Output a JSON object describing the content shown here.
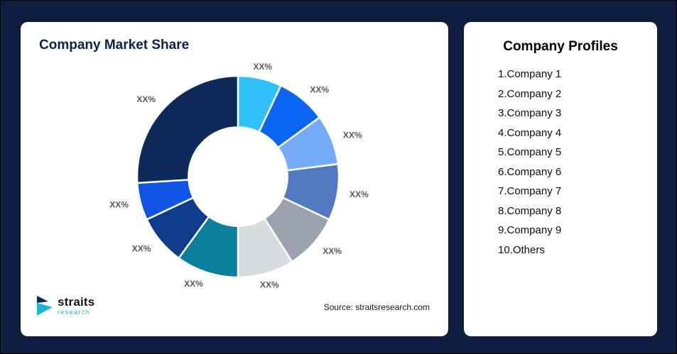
{
  "left_card": {
    "title": "Company Market Share",
    "source": "Source: straitsresearch.com"
  },
  "logo": {
    "name": "straits",
    "sub": "research"
  },
  "profiles": {
    "title": "Company Profiles",
    "items": [
      "1.Company 1",
      "2.Company 2",
      "3.Company 3",
      "4.Company 4",
      "5.Company 5",
      "6.Company 6",
      "7.Company 7",
      "8.Company 8",
      "9.Company 9",
      "10.Others"
    ]
  },
  "chart_data": {
    "type": "pie",
    "subtype": "donut",
    "title": "Company Market Share",
    "legend": "none",
    "start_angle_deg": 0,
    "direction": "clockwise",
    "inner_radius_ratio": 0.49,
    "segments": [
      {
        "label": "XX%",
        "value": 7,
        "color": "#2fc1f7"
      },
      {
        "label": "XX%",
        "value": 8,
        "color": "#0a66f2"
      },
      {
        "label": "XX%",
        "value": 8,
        "color": "#74aaf8"
      },
      {
        "label": "XX%",
        "value": 9,
        "color": "#5079c1"
      },
      {
        "label": "XX%",
        "value": 9,
        "color": "#9aa2ae"
      },
      {
        "label": "XX%",
        "value": 9,
        "color": "#d8dbdf"
      },
      {
        "label": "XX%",
        "value": 10,
        "color": "#0b7f9e"
      },
      {
        "label": "XX%",
        "value": 8,
        "color": "#0e3c8c"
      },
      {
        "label": "XX%",
        "value": 6,
        "color": "#1155e6"
      },
      {
        "label": "XX%",
        "value": 26,
        "color": "#0d2a5a"
      }
    ]
  }
}
